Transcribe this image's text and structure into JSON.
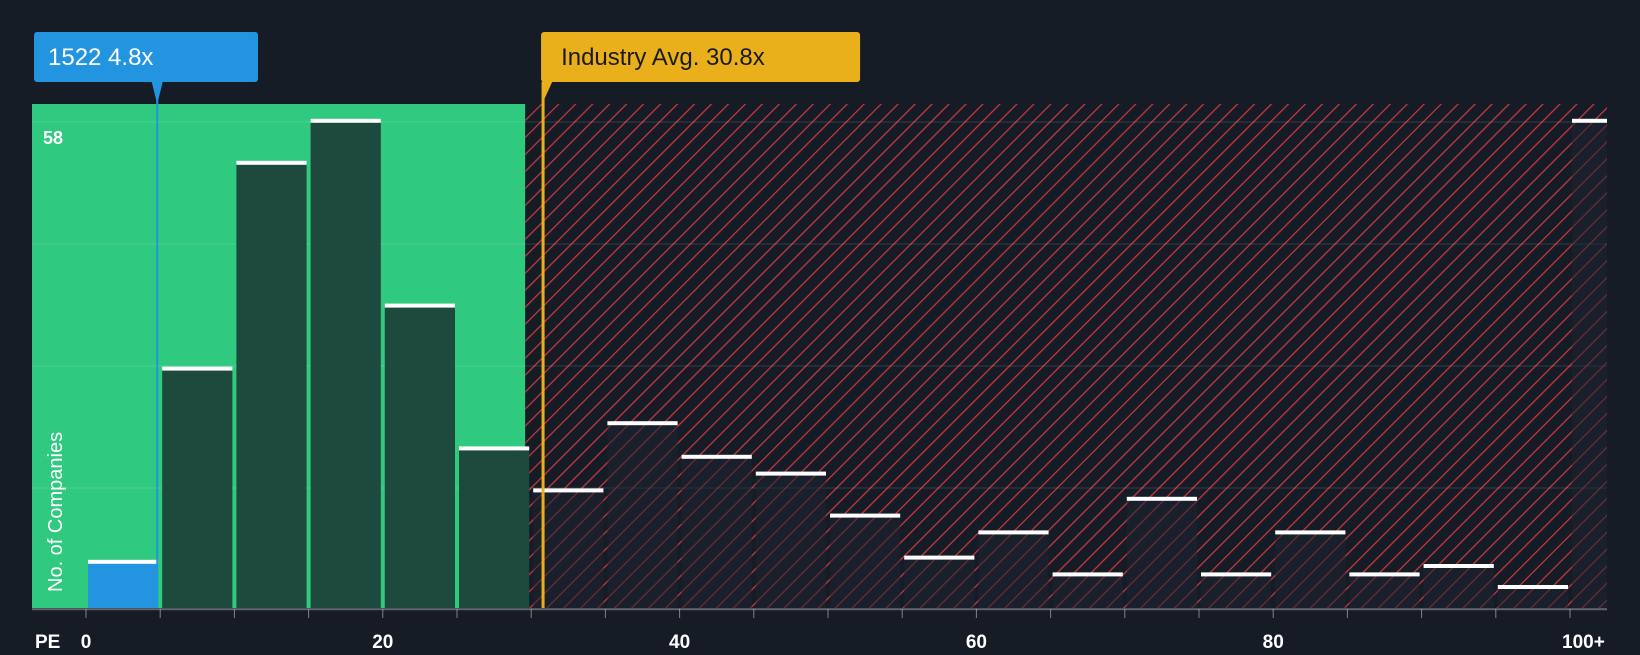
{
  "company": {
    "ticker": "1522",
    "value_label": "4.8x",
    "pe": 4.8,
    "color": "#2394e0"
  },
  "industry": {
    "label": "Industry Avg.",
    "value_label": "30.8x",
    "pe": 30.8,
    "color": "#e9b01c"
  },
  "colors": {
    "background": "#161c26",
    "fair_zone": "#2fc97f",
    "overvalued_hatch": "#d0393f",
    "bar_in_zone": "#1d4a3d",
    "bar_top": "#ffffff"
  },
  "chart_data": {
    "type": "bar",
    "title": "",
    "xlabel": "PE",
    "ylabel": "No. of Companies",
    "x_ticks": [
      "0",
      "20",
      "40",
      "60",
      "80",
      "100+"
    ],
    "y_max_label": "58",
    "xlim": [
      0,
      103
    ],
    "ylim": [
      0,
      60
    ],
    "grid": true,
    "fair_zone_max_pe": 29.6,
    "bin_width": 5,
    "bins": [
      {
        "start": 0,
        "count": 5.5
      },
      {
        "start": 5,
        "count": 28.5
      },
      {
        "start": 10,
        "count": 53
      },
      {
        "start": 15,
        "count": 58
      },
      {
        "start": 20,
        "count": 36
      },
      {
        "start": 25,
        "count": 19
      },
      {
        "start": 30,
        "count": 14
      },
      {
        "start": 35,
        "count": 22
      },
      {
        "start": 40,
        "count": 18
      },
      {
        "start": 45,
        "count": 16
      },
      {
        "start": 50,
        "count": 11
      },
      {
        "start": 55,
        "count": 6
      },
      {
        "start": 60,
        "count": 9
      },
      {
        "start": 65,
        "count": 4
      },
      {
        "start": 70,
        "count": 13
      },
      {
        "start": 75,
        "count": 4
      },
      {
        "start": 80,
        "count": 9
      },
      {
        "start": 85,
        "count": 4
      },
      {
        "start": 90,
        "count": 5
      },
      {
        "start": 95,
        "count": 2.5
      },
      {
        "start": 100,
        "count": 58
      }
    ]
  }
}
